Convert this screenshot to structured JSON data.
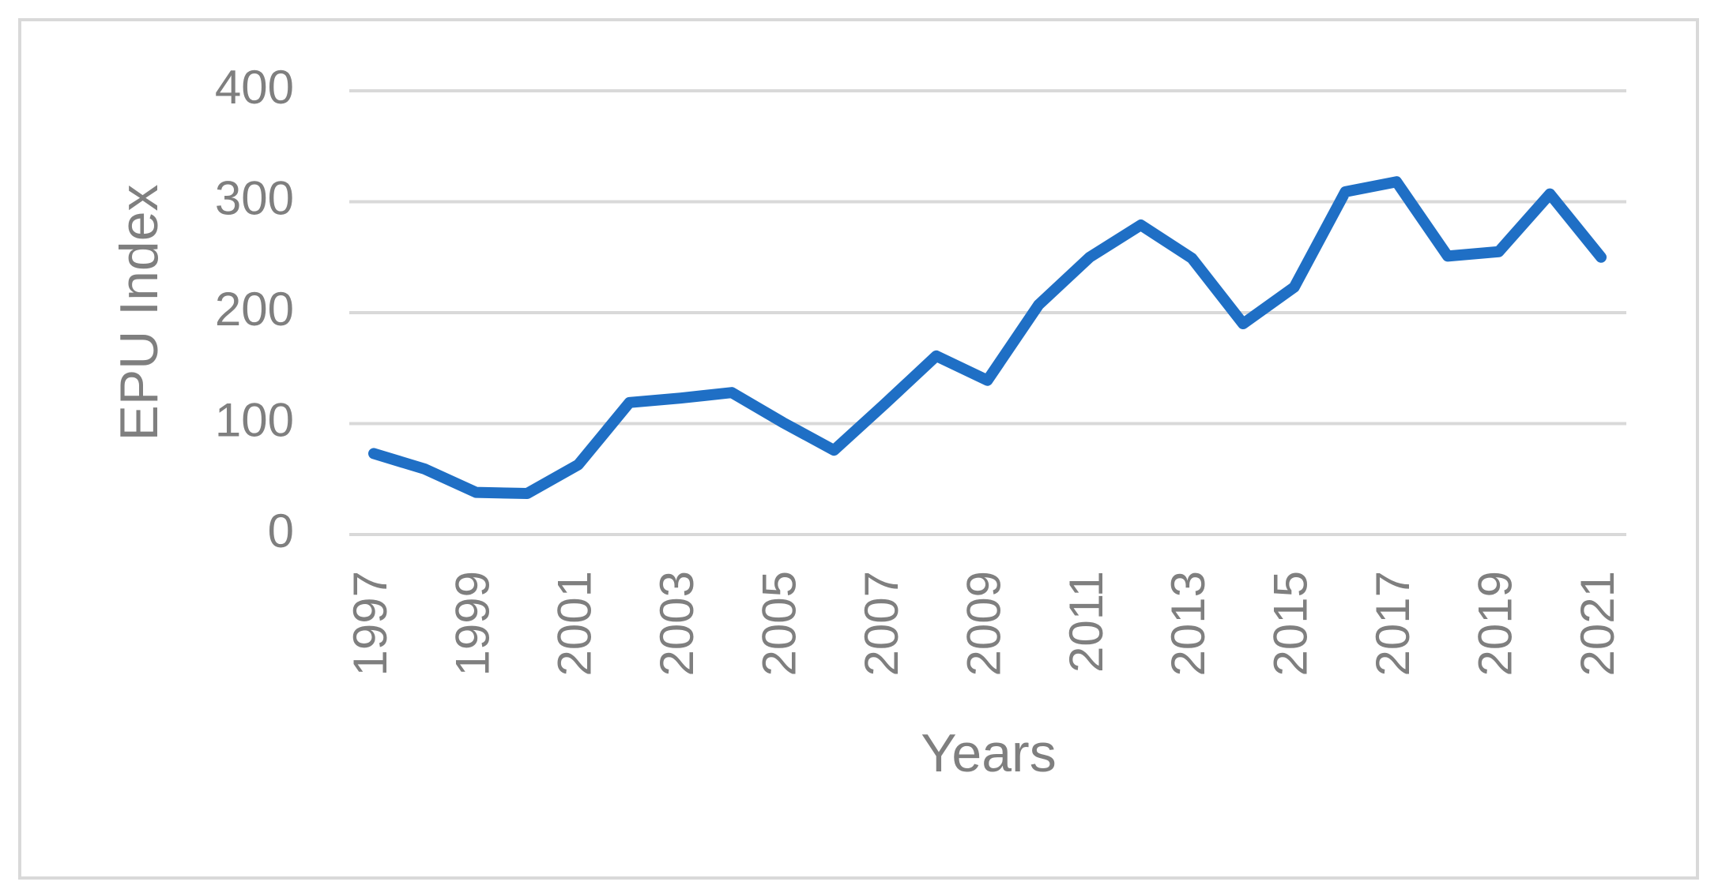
{
  "chart_data": {
    "type": "line",
    "y_label": "EPU Index",
    "x_label": "Years",
    "categories": [
      "1997",
      null,
      "1999",
      null,
      "2001",
      null,
      "2003",
      null,
      "2005",
      null,
      "2007",
      null,
      "2009",
      null,
      "2011",
      null,
      "2013",
      null,
      "2015",
      null,
      "2017",
      null,
      "2019",
      null,
      "2021"
    ],
    "series": [
      {
        "color": "#1f6fc5",
        "values": [
          73,
          59,
          38,
          37,
          63,
          119,
          123,
          128,
          101,
          76,
          118,
          161,
          139,
          207,
          250,
          279,
          249,
          190,
          223,
          309,
          318,
          251,
          255,
          307,
          250
        ]
      }
    ],
    "ylim": [
      0,
      400
    ],
    "yticks": [
      0,
      100,
      200,
      300,
      400
    ],
    "grid": true
  }
}
